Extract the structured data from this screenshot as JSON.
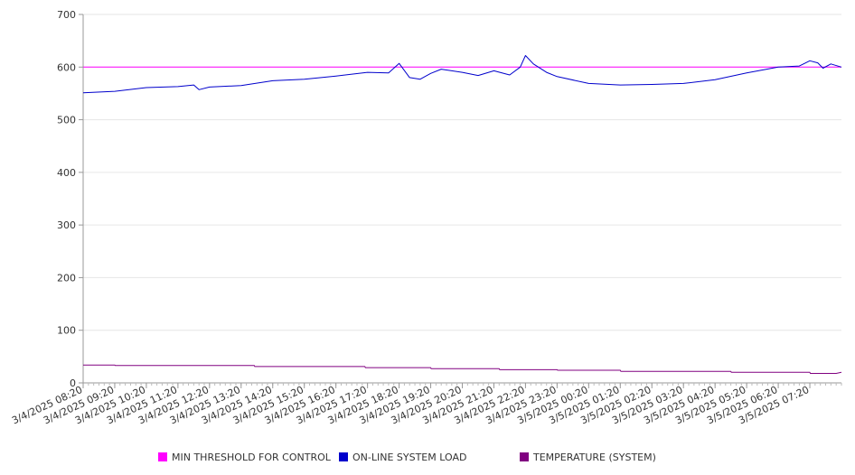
{
  "chart_data": {
    "type": "line",
    "x_ticks": [
      "3/4/2025 08:20",
      "3/4/2025 09:20",
      "3/4/2025 10:20",
      "3/4/2025 11:20",
      "3/4/2025 12:20",
      "3/4/2025 13:20",
      "3/4/2025 14:20",
      "3/4/2025 15:20",
      "3/4/2025 16:20",
      "3/4/2025 17:20",
      "3/4/2025 18:20",
      "3/4/2025 19:20",
      "3/4/2025 20:20",
      "3/4/2025 21:20",
      "3/4/2025 22:20",
      "3/4/2025 23:20",
      "3/5/2025 00:20",
      "3/5/2025 01:20",
      "3/5/2025 02:20",
      "3/5/2025 03:20",
      "3/5/2025 04:20",
      "3/5/2025 05:20",
      "3/5/2025 06:20",
      "3/5/2025 07:20"
    ],
    "y_ticks": [
      0,
      100,
      200,
      300,
      400,
      500,
      600,
      700
    ],
    "ylim": [
      0,
      700
    ],
    "grid": true,
    "legend_position": "bottom",
    "series": [
      {
        "name": "MIN THRESHOLD FOR CONTROL",
        "color": "#ff00ff",
        "x": [
          "3/4/2025 08:20",
          "3/5/2025 08:20"
        ],
        "y": [
          600,
          600
        ]
      },
      {
        "name": "ON-LINE SYSTEM LOAD",
        "color": "#0000cc",
        "x": [
          "3/4/2025 08:20",
          "3/4/2025 09:20",
          "3/4/2025 10:20",
          "3/4/2025 11:20",
          "3/4/2025 11:50",
          "3/4/2025 12:00",
          "3/4/2025 12:20",
          "3/4/2025 13:20",
          "3/4/2025 14:20",
          "3/4/2025 15:20",
          "3/4/2025 16:20",
          "3/4/2025 17:20",
          "3/4/2025 18:00",
          "3/4/2025 18:20",
          "3/4/2025 18:40",
          "3/4/2025 19:00",
          "3/4/2025 19:20",
          "3/4/2025 19:40",
          "3/4/2025 20:20",
          "3/4/2025 20:50",
          "3/4/2025 21:20",
          "3/4/2025 21:50",
          "3/4/2025 22:10",
          "3/4/2025 22:20",
          "3/4/2025 22:35",
          "3/4/2025 23:00",
          "3/4/2025 23:20",
          "3/5/2025 00:20",
          "3/5/2025 01:20",
          "3/5/2025 02:20",
          "3/5/2025 03:20",
          "3/5/2025 04:20",
          "3/5/2025 05:20",
          "3/5/2025 06:20",
          "3/5/2025 07:00",
          "3/5/2025 07:20",
          "3/5/2025 07:35",
          "3/5/2025 07:45",
          "3/5/2025 08:00",
          "3/5/2025 08:20"
        ],
        "y": [
          551,
          554,
          561,
          563,
          566,
          557,
          562,
          565,
          574,
          577,
          583,
          590,
          589,
          607,
          580,
          577,
          588,
          596,
          590,
          584,
          593,
          585,
          600,
          622,
          606,
          590,
          582,
          569,
          566,
          567,
          569,
          576,
          589,
          600,
          602,
          612,
          608,
          598,
          606,
          600
        ]
      },
      {
        "name": "TEMPERATURE (SYSTEM)",
        "color": "#800080",
        "x": [
          "3/4/2025 08:20",
          "3/4/2025 09:20",
          "3/4/2025 09:21",
          "3/4/2025 13:45",
          "3/4/2025 13:46",
          "3/4/2025 17:15",
          "3/4/2025 17:16",
          "3/4/2025 19:20",
          "3/4/2025 19:21",
          "3/4/2025 21:30",
          "3/4/2025 21:31",
          "3/4/2025 23:20",
          "3/4/2025 23:21",
          "3/5/2025 01:20",
          "3/5/2025 01:21",
          "3/5/2025 04:50",
          "3/5/2025 04:51",
          "3/5/2025 07:20",
          "3/5/2025 07:21",
          "3/5/2025 08:10",
          "3/5/2025 08:20"
        ],
        "y": [
          34,
          34,
          33,
          33,
          31,
          31,
          29,
          29,
          27,
          27,
          25,
          25,
          24,
          24,
          22,
          22,
          20,
          20,
          18,
          18,
          20
        ]
      }
    ]
  }
}
